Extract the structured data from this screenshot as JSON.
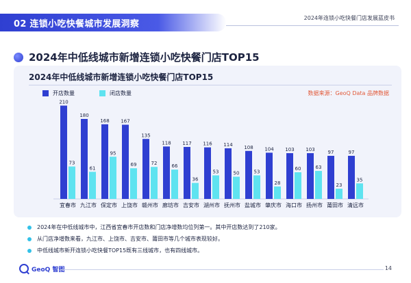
{
  "header": {
    "section_tab": "02 连锁小吃快餐城市发展洞察",
    "report_title": "2024年连锁小吃快餐门店发展蓝皮书"
  },
  "main_title": "2024年中低线城市新增连锁小吃快餐门店TOP15",
  "source_note": "数据来源：GeoQ Data 品牌数据",
  "colors": {
    "open_bar": "#2f3fd1",
    "close_bar": "#5fe3f0",
    "accent": "#2f3fd1",
    "bullet": "#33c1e8"
  },
  "chart_data": {
    "type": "bar",
    "title": "2024年中低线城市新增连锁小吃快餐门店TOP15",
    "xlabel": "",
    "ylabel": "",
    "ylim": [
      0,
      220
    ],
    "legend_position": "top-left",
    "categories": [
      "宜春市",
      "九江市",
      "保定市",
      "上饶市",
      "赣州市",
      "廊坊市",
      "吉安市",
      "湖州市",
      "抚州市",
      "盐城市",
      "肇庆市",
      "海口市",
      "扬州市",
      "莆田市",
      "清远市"
    ],
    "series": [
      {
        "name": "开店数量",
        "values": [
          210,
          180,
          168,
          167,
          135,
          118,
          117,
          116,
          114,
          108,
          104,
          103,
          103,
          97,
          97
        ]
      },
      {
        "name": "闭店数量",
        "values": [
          73,
          61,
          95,
          69,
          72,
          66,
          36,
          53,
          50,
          53,
          28,
          60,
          63,
          23,
          35
        ]
      }
    ]
  },
  "bullets": [
    "2024年在中低线城市中，江西省宜春市开店数和门店净增数均位列第一。其中开店数达到了210家。",
    "从门店净增数来看，九江市、上饶市、吉安市、莆田市等几个城市表现较好。",
    "中低线城市新开连锁小吃快餐TOP15既有三线城市，也有四线城市。"
  ],
  "footer": {
    "logo_text": "GeoQ 智图",
    "page_number": "14"
  }
}
